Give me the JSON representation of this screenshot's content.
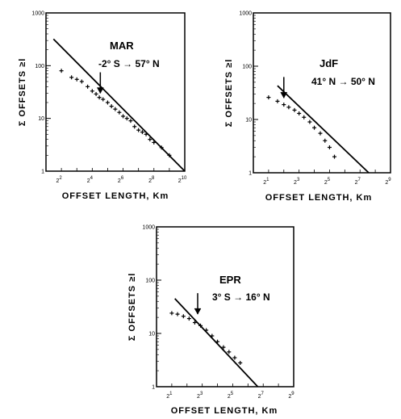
{
  "figure": {
    "ylabel": "Σ OFFSETS ≥l",
    "xlabel": "OFFSET LENGTH, Km"
  },
  "chart_data": [
    {
      "type": "scatter",
      "title": "MAR",
      "subtitle": "-2° S → 57° N",
      "xlabel": "OFFSET LENGTH, Km",
      "ylabel": "Σ OFFSETS ≥l",
      "x_scale": "log2",
      "y_scale": "log10",
      "xlim": [
        2,
        1024
      ],
      "ylim": [
        1,
        1000
      ],
      "x_tick_labels": [
        "2",
        "4",
        "6",
        "8",
        "10"
      ],
      "x_tick_values": [
        4,
        16,
        64,
        256,
        1024
      ],
      "y_tick_labels": [
        "1",
        "10",
        "100",
        "1000"
      ],
      "series": [
        {
          "kind": "points",
          "x": [
            4,
            6.3,
            8,
            10,
            13,
            16,
            19,
            22,
            26,
            32,
            38,
            45,
            54,
            64,
            76,
            90,
            107,
            128,
            152,
            180,
            214,
            256,
            360,
            512
          ],
          "y": [
            80,
            60,
            55,
            50,
            40,
            33,
            29,
            25,
            23,
            20,
            17,
            15,
            13,
            11,
            10,
            9,
            7,
            6,
            5.5,
            5,
            4,
            3.5,
            2.8,
            2
          ]
        },
        {
          "kind": "fit",
          "x": [
            2.8,
            1024
          ],
          "y": [
            320,
            1
          ]
        }
      ],
      "annotation": {
        "type": "arrow",
        "x": 23,
        "y": 26
      }
    },
    {
      "type": "scatter",
      "title": "JdF",
      "subtitle": "41° N → 50° N",
      "xlabel": "OFFSET LENGTH, Km",
      "ylabel": "Σ OFFSETS ≥l",
      "x_scale": "log2",
      "y_scale": "log10",
      "xlim": [
        1,
        512
      ],
      "ylim": [
        1,
        1000
      ],
      "x_tick_labels": [
        "1",
        "3",
        "5",
        "7",
        "9"
      ],
      "x_tick_values": [
        2,
        8,
        32,
        128,
        512
      ],
      "y_tick_labels": [
        "1",
        "10",
        "100",
        "1000"
      ],
      "series": [
        {
          "kind": "points",
          "x": [
            2,
            3,
            4,
            5,
            6.5,
            8,
            10,
            13,
            16,
            21,
            26,
            32,
            40
          ],
          "y": [
            26,
            22,
            19,
            17,
            15,
            13,
            11,
            9,
            7,
            5.5,
            4,
            3,
            2
          ]
        },
        {
          "kind": "fit",
          "x": [
            3,
            190
          ],
          "y": [
            43,
            1
          ]
        }
      ],
      "annotation": {
        "type": "arrow",
        "x": 4,
        "y": 22
      }
    },
    {
      "type": "scatter",
      "title": "EPR",
      "subtitle": "3° S → 16° N",
      "xlabel": "OFFSET LENGTH, Km",
      "ylabel": "Σ OFFSETS ≥l",
      "x_scale": "log2",
      "y_scale": "log10",
      "xlim": [
        1,
        512
      ],
      "ylim": [
        1,
        1000
      ],
      "x_tick_labels": [
        "1",
        "3",
        "5",
        "7",
        "9"
      ],
      "x_tick_values": [
        2,
        8,
        32,
        128,
        512
      ],
      "y_tick_labels": [
        "1",
        "10",
        "100",
        "1000"
      ],
      "series": [
        {
          "kind": "points",
          "x": [
            2,
            2.6,
            3.4,
            4.4,
            5.7,
            7.4,
            9.6,
            12.5,
            16,
            21,
            27,
            35,
            45
          ],
          "y": [
            24,
            23,
            21,
            19,
            16,
            14,
            11.5,
            9,
            7,
            5.5,
            4.5,
            3.5,
            2.8
          ]
        },
        {
          "kind": "fit",
          "x": [
            2.3,
            100
          ],
          "y": [
            45,
            1
          ]
        }
      ],
      "annotation": {
        "type": "arrow",
        "x": 6.5,
        "y": 20
      }
    }
  ]
}
